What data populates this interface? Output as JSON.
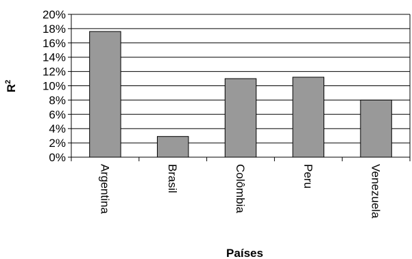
{
  "chart_data": {
    "type": "bar",
    "categories": [
      "Argentina",
      "Brasil",
      "Colômbia",
      "Peru",
      "Venezuela"
    ],
    "values": [
      17.6,
      2.9,
      11.0,
      11.2,
      8.0
    ],
    "ylim": [
      0,
      20
    ],
    "yticks": [
      "0%",
      "2%",
      "4%",
      "6%",
      "8%",
      "10%",
      "12%",
      "14%",
      "16%",
      "18%",
      "20%"
    ],
    "ytick_values": [
      0,
      2,
      4,
      6,
      8,
      10,
      12,
      14,
      16,
      18,
      20
    ],
    "xlabel": "Países",
    "ylabel": "R",
    "ylabel_superscript": "2",
    "grid": true,
    "legend": "none",
    "colors": {
      "bar_fill": "#999999",
      "bar_stroke": "#000000",
      "grid": "#000000",
      "axis": "#000000"
    }
  }
}
